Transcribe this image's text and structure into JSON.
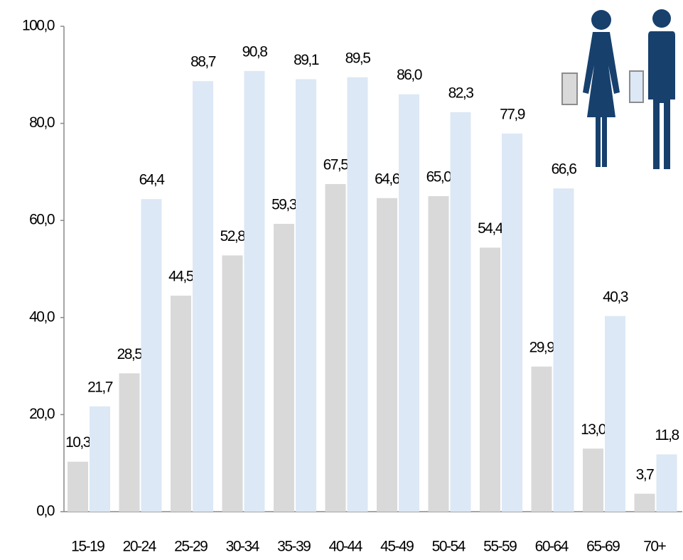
{
  "chart_data": {
    "type": "bar",
    "categories": [
      "15-19",
      "20-24",
      "25-29",
      "30-34",
      "35-39",
      "40-44",
      "45-49",
      "50-54",
      "55-59",
      "60-64",
      "65-69",
      "70+"
    ],
    "series": [
      {
        "color": "#d9d9d9",
        "values": [
          10.3,
          28.5,
          44.5,
          52.8,
          59.3,
          67.5,
          64.6,
          65.0,
          54.4,
          29.9,
          13.0,
          3.7
        ],
        "value_labels": [
          "10,3",
          "28,5",
          "44,5",
          "52,8",
          "59,3",
          "67,5",
          "64,6",
          "65,0",
          "54,4",
          "29,9",
          "13,0",
          "3,7"
        ]
      },
      {
        "color": "#dce8f5",
        "values": [
          21.7,
          64.4,
          88.7,
          90.8,
          89.1,
          89.5,
          86.0,
          82.3,
          77.9,
          66.6,
          40.3,
          11.8
        ],
        "value_labels": [
          "21,7",
          "64,4",
          "88,7",
          "90,8",
          "89,1",
          "89,5",
          "86,0",
          "82,3",
          "77,9",
          "66,6",
          "40,3",
          "11,8"
        ]
      }
    ],
    "ylim": [
      0,
      100
    ],
    "yticks": [
      {
        "value": 0,
        "label": "0,0"
      },
      {
        "value": 20,
        "label": "20,0"
      },
      {
        "value": 40,
        "label": "40,0"
      },
      {
        "value": 60,
        "label": "60,0"
      },
      {
        "value": 80,
        "label": "80,0"
      },
      {
        "value": 100,
        "label": "100,0"
      }
    ],
    "grid": false
  }
}
